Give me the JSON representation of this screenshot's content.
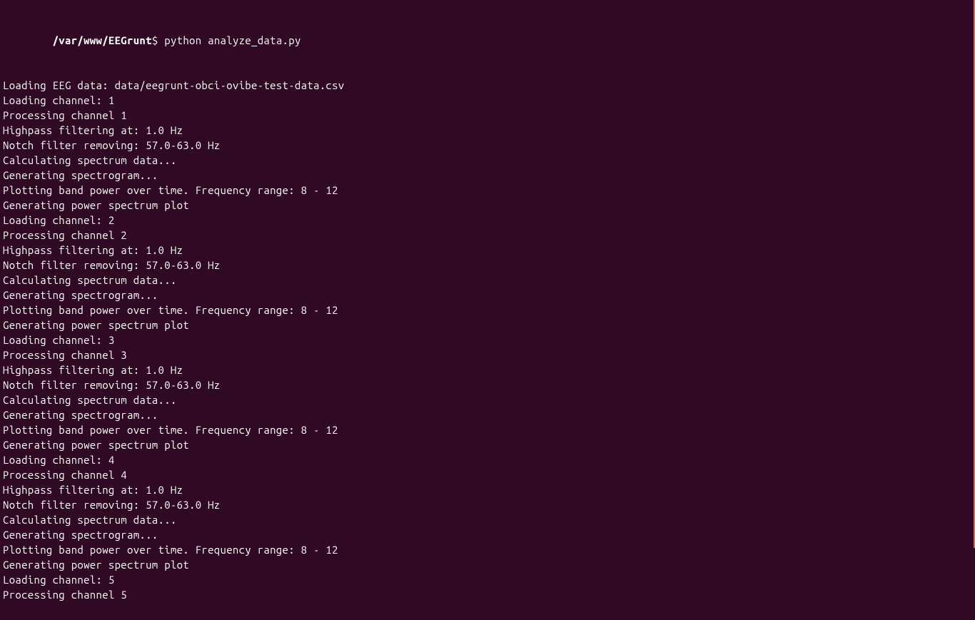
{
  "terminal": {
    "background_color": "#300a24",
    "text_color": "#ffffff",
    "accent_border_color": "#e8663c",
    "font_family": "Ubuntu Mono",
    "font_size": 15,
    "prompt": {
      "path": "/var/www/EEGrunt",
      "symbol": "$",
      "command": "python analyze_data.py"
    },
    "lines": [
      "Loading EEG data: data/eegrunt-obci-ovibe-test-data.csv",
      "Loading channel: 1",
      "Processing channel 1",
      "Highpass filtering at: 1.0 Hz",
      "Notch filter removing: 57.0-63.0 Hz",
      "Calculating spectrum data...",
      "Generating spectrogram...",
      "Plotting band power over time. Frequency range: 8 - 12",
      "Generating power spectrum plot",
      "Loading channel: 2",
      "Processing channel 2",
      "Highpass filtering at: 1.0 Hz",
      "Notch filter removing: 57.0-63.0 Hz",
      "Calculating spectrum data...",
      "Generating spectrogram...",
      "Plotting band power over time. Frequency range: 8 - 12",
      "Generating power spectrum plot",
      "Loading channel: 3",
      "Processing channel 3",
      "Highpass filtering at: 1.0 Hz",
      "Notch filter removing: 57.0-63.0 Hz",
      "Calculating spectrum data...",
      "Generating spectrogram...",
      "Plotting band power over time. Frequency range: 8 - 12",
      "Generating power spectrum plot",
      "Loading channel: 4",
      "Processing channel 4",
      "Highpass filtering at: 1.0 Hz",
      "Notch filter removing: 57.0-63.0 Hz",
      "Calculating spectrum data...",
      "Generating spectrogram...",
      "Plotting band power over time. Frequency range: 8 - 12",
      "Generating power spectrum plot",
      "Loading channel: 5",
      "Processing channel 5"
    ]
  }
}
